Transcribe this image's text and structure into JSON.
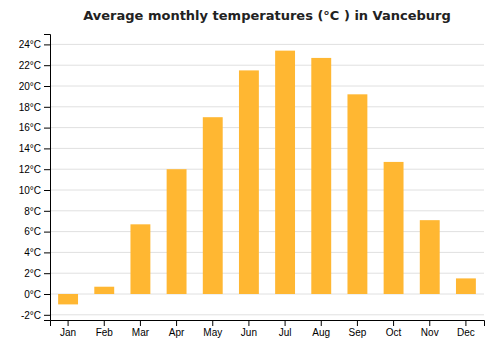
{
  "chart_data": {
    "type": "bar",
    "title": "Average monthly temperatures (°C ) in Vanceburg",
    "categories": [
      "Jan",
      "Feb",
      "Mar",
      "Apr",
      "May",
      "Jun",
      "Jul",
      "Aug",
      "Sep",
      "Oct",
      "Nov",
      "Dec"
    ],
    "values": [
      -1.0,
      0.7,
      6.7,
      12.0,
      17.0,
      21.5,
      23.4,
      22.7,
      19.2,
      12.7,
      7.1,
      1.5
    ],
    "color": "#FFB732",
    "ylim": [
      -2.5,
      25.0
    ],
    "yticks": [
      {
        "value": -2,
        "label": "-2°C"
      },
      {
        "value": 0,
        "label": "0°C"
      },
      {
        "value": 2,
        "label": "2°C"
      },
      {
        "value": 4,
        "label": "4°C"
      },
      {
        "value": 6,
        "label": "6°C"
      },
      {
        "value": 8,
        "label": "8°C"
      },
      {
        "value": 10,
        "label": "10°C"
      },
      {
        "value": 12,
        "label": "12°C"
      },
      {
        "value": 14,
        "label": "14°C"
      },
      {
        "value": 16,
        "label": "16°C"
      },
      {
        "value": 18,
        "label": "18°C"
      },
      {
        "value": 20,
        "label": "20°C"
      },
      {
        "value": 22,
        "label": "22°C"
      },
      {
        "value": 24,
        "label": "24°C"
      }
    ],
    "grid": true
  }
}
